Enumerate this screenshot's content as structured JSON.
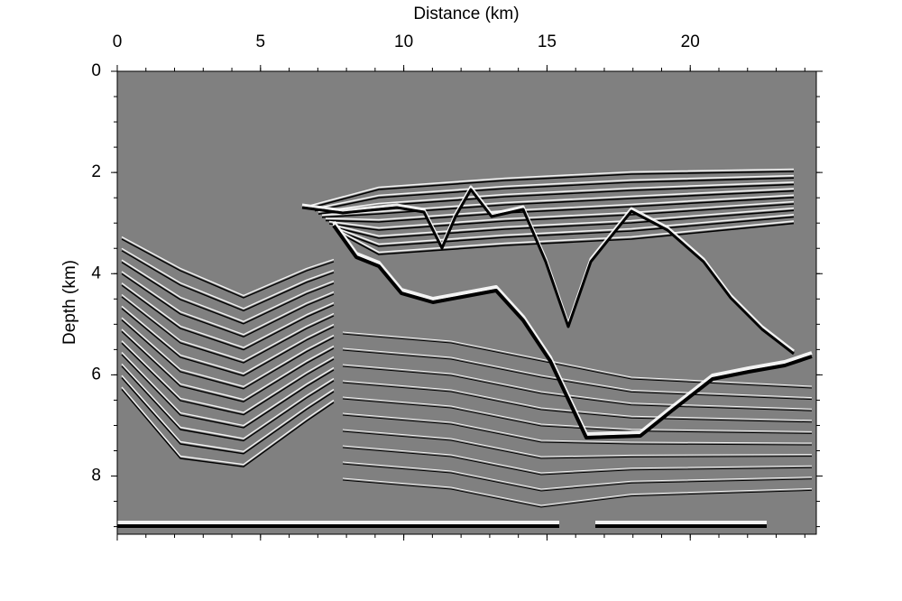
{
  "chart_data": {
    "type": "image",
    "xlabel": "Distance (km)",
    "ylabel": "Depth (km)",
    "xlim": [
      0,
      24.4
    ],
    "xticks": [
      0,
      5,
      10,
      15,
      20
    ],
    "ylim": [
      0,
      9.15
    ],
    "yticks": [
      0,
      2,
      4,
      6,
      8
    ],
    "background": "#808080"
  }
}
